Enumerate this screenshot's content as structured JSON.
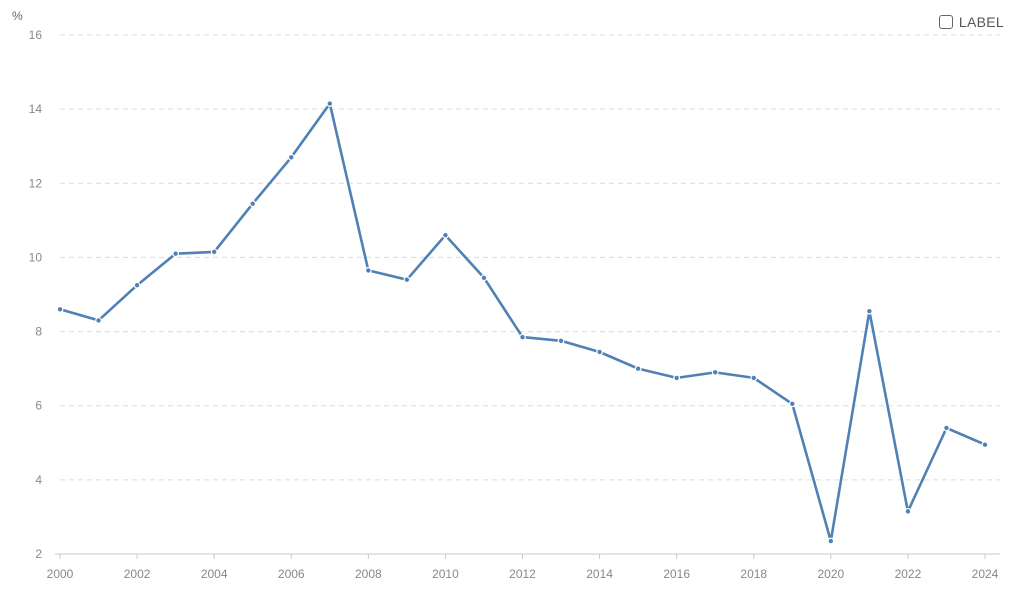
{
  "header": {
    "unit": "%",
    "label_toggle": "LABEL"
  },
  "colors": {
    "line": "#4f81b4",
    "grid": "#dcdcdc",
    "tick": "#888888"
  },
  "chart_data": {
    "type": "line",
    "title": "",
    "xlabel": "",
    "ylabel": "%",
    "xlim": [
      2000,
      2024
    ],
    "ylim": [
      2,
      16
    ],
    "yticks": [
      2,
      4,
      6,
      8,
      10,
      12,
      14,
      16
    ],
    "xticks": [
      2000,
      2002,
      2004,
      2006,
      2008,
      2010,
      2012,
      2014,
      2016,
      2018,
      2020,
      2022,
      2024
    ],
    "grid": true,
    "x": [
      2000,
      2001,
      2002,
      2003,
      2004,
      2005,
      2006,
      2007,
      2008,
      2009,
      2010,
      2011,
      2012,
      2013,
      2014,
      2015,
      2016,
      2017,
      2018,
      2019,
      2020,
      2021,
      2022,
      2023,
      2024
    ],
    "series": [
      {
        "values": [
          8.6,
          8.3,
          9.25,
          10.1,
          10.15,
          11.45,
          12.7,
          14.15,
          9.65,
          9.4,
          10.6,
          9.45,
          7.85,
          7.75,
          7.45,
          7.0,
          6.75,
          6.9,
          6.75,
          6.05,
          2.35,
          8.55,
          3.15,
          5.4,
          4.95
        ]
      }
    ]
  }
}
